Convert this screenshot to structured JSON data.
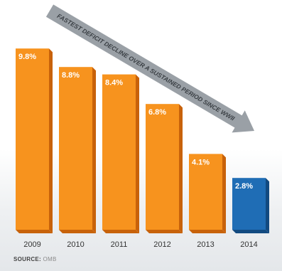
{
  "colors": {
    "bar": "#f7931e",
    "bar_dark": "#c8620a",
    "bar_highlight": "#1f6db5",
    "bar_highlight_dark": "#124a80",
    "arrow": "#9aa0a6",
    "arrow_text": "#3a3f44",
    "label": "#ffffff",
    "tick": "#333333"
  },
  "annotation": "FASTEST DEFICIT DECLINE OVER A SUSTAINED PERIOD SINCE WWII",
  "source": {
    "label": "SOURCE:",
    "value": "OMB"
  },
  "chart_data": {
    "type": "bar",
    "title": "",
    "xlabel": "",
    "ylabel": "",
    "categories": [
      "2009",
      "2010",
      "2011",
      "2012",
      "2013",
      "2014"
    ],
    "values": [
      9.8,
      8.8,
      8.4,
      6.8,
      4.1,
      2.8
    ],
    "value_labels": [
      "9.8%",
      "8.8%",
      "8.4%",
      "6.8%",
      "4.1%",
      "2.8%"
    ],
    "highlight_index": 5,
    "ylim": [
      0,
      10.5
    ],
    "grid": false,
    "legend": "none"
  }
}
